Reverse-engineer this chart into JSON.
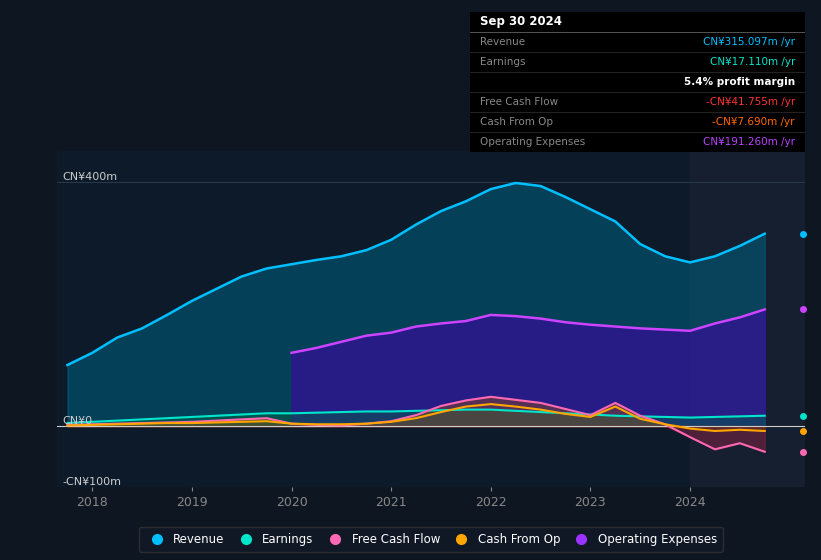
{
  "bg_color": "#0e1621",
  "plot_bg_color": "#0d1a2a",
  "title_box": {
    "date": "Sep 30 2024",
    "rows": [
      {
        "label": "Revenue",
        "value": "CN¥315.097m /yr",
        "value_color": "#00bfff"
      },
      {
        "label": "Earnings",
        "value": "CN¥17.110m /yr",
        "value_color": "#00e5cc"
      },
      {
        "label": "",
        "value": "5.4% profit margin",
        "value_color": "#ffffff"
      },
      {
        "label": "Free Cash Flow",
        "value": "-CN¥41.755m /yr",
        "value_color": "#ff3333"
      },
      {
        "label": "Cash From Op",
        "value": "-CN¥7.690m /yr",
        "value_color": "#ff6600"
      },
      {
        "label": "Operating Expenses",
        "value": "CN¥191.260m /yr",
        "value_color": "#bb44ff"
      }
    ]
  },
  "ylim": [
    -100,
    450
  ],
  "ytick_vals": [
    -100,
    0,
    400
  ],
  "ytick_labels": [
    "-CN¥100m",
    "CN¥0",
    "CN¥400m"
  ],
  "xlabel_ticks": [
    2018,
    2019,
    2020,
    2021,
    2022,
    2023,
    2024
  ],
  "shaded_start": 2024.0,
  "legend": [
    {
      "label": "Revenue",
      "color": "#00bfff"
    },
    {
      "label": "Earnings",
      "color": "#00e5cc"
    },
    {
      "label": "Free Cash Flow",
      "color": "#ff69b4"
    },
    {
      "label": "Cash From Op",
      "color": "#ffa500"
    },
    {
      "label": "Operating Expenses",
      "color": "#9933ff"
    }
  ],
  "series": {
    "x": [
      2017.75,
      2018.0,
      2018.25,
      2018.5,
      2018.75,
      2019.0,
      2019.25,
      2019.5,
      2019.75,
      2020.0,
      2020.25,
      2020.5,
      2020.75,
      2021.0,
      2021.25,
      2021.5,
      2021.75,
      2022.0,
      2022.25,
      2022.5,
      2022.75,
      2023.0,
      2023.25,
      2023.5,
      2023.75,
      2024.0,
      2024.25,
      2024.5,
      2024.75
    ],
    "revenue": [
      100,
      120,
      145,
      160,
      182,
      205,
      225,
      245,
      258,
      265,
      272,
      278,
      288,
      305,
      330,
      352,
      368,
      388,
      398,
      393,
      375,
      355,
      335,
      298,
      278,
      268,
      278,
      295,
      315
    ],
    "earnings": [
      5,
      7,
      9,
      11,
      13,
      15,
      17,
      19,
      21,
      21,
      22,
      23,
      24,
      24,
      25,
      26,
      27,
      27,
      25,
      23,
      21,
      19,
      17,
      16,
      15,
      14,
      15,
      16,
      17
    ],
    "fcf": [
      2,
      3,
      4,
      5,
      6,
      7,
      9,
      11,
      13,
      4,
      2,
      1,
      4,
      8,
      18,
      33,
      42,
      48,
      43,
      38,
      28,
      18,
      38,
      17,
      3,
      -18,
      -38,
      -28,
      -42
    ],
    "cashfromop": [
      1,
      2,
      3,
      4,
      5,
      5,
      6,
      7,
      8,
      4,
      3,
      3,
      4,
      7,
      13,
      23,
      32,
      36,
      32,
      27,
      20,
      15,
      32,
      12,
      3,
      -4,
      -8,
      -6,
      -8
    ],
    "opex": [
      null,
      null,
      null,
      null,
      null,
      null,
      null,
      null,
      null,
      120,
      128,
      138,
      148,
      153,
      163,
      168,
      172,
      182,
      180,
      176,
      170,
      166,
      163,
      160,
      158,
      156,
      168,
      178,
      191
    ]
  }
}
